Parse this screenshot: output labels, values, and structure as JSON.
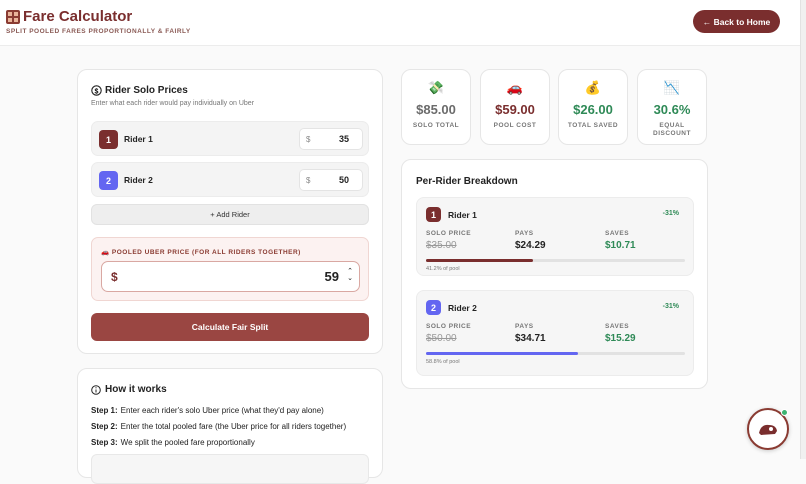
{
  "header": {
    "title": "Fare Calculator",
    "subtitle": "SPLIT POOLED FARES PROPORTIONALLY & FAIRLY",
    "back_button": "← Back to Home"
  },
  "solo_prices": {
    "title": "Rider Solo Prices",
    "description": "Enter what each rider would pay individually on Uber",
    "currency": "$",
    "riders": [
      {
        "number": 1,
        "name": "Rider 1",
        "price": 35
      },
      {
        "number": 2,
        "name": "Rider 2",
        "price": 50
      }
    ],
    "add_button": "+ Add Rider",
    "pool_label": "🚗 POOLED UBER PRICE (FOR ALL RIDERS TOGETHER)",
    "pool_currency": "$",
    "pool_price": 59,
    "calculate_button": "Calculate Fair Split"
  },
  "stats": [
    {
      "icon": "💸",
      "value": "$85.00",
      "label": "SOLO TOTAL"
    },
    {
      "icon": "🚗",
      "value": "$59.00",
      "label": "POOL COST"
    },
    {
      "icon": "💰",
      "value": "$26.00",
      "label": "TOTAL SAVED"
    },
    {
      "icon": "📉",
      "value": "30.6%",
      "label": "EQUAL DISCOUNT"
    }
  ],
  "breakdown": {
    "title": "Per-Rider Breakdown",
    "riders": [
      {
        "number": 1,
        "name": "Rider 1",
        "discount": "-31%",
        "solo_label": "SOLO PRICE",
        "solo_price": "$35.00",
        "pays_label": "PAYS",
        "pays": "$24.29",
        "saves_label": "SAVES",
        "saves": "$10.71",
        "pool_share": {
          "value": 41.2,
          "label": "41.2% of pool"
        }
      },
      {
        "number": 2,
        "name": "Rider 2",
        "discount": "-31%",
        "solo_label": "SOLO PRICE",
        "solo_price": "$50.00",
        "pays_label": "PAYS",
        "pays": "$34.71",
        "saves_label": "SAVES",
        "saves": "$15.29",
        "pool_share": {
          "value": 58.8,
          "label": "58.8% of pool"
        }
      }
    ]
  },
  "how_it_works": {
    "title": "How it works",
    "steps": [
      {
        "label": "Step 1:",
        "text": "Enter each rider's solo Uber price (what they'd pay alone)"
      },
      {
        "label": "Step 2:",
        "text": "Enter the total pooled fare (the Uber price for all riders together)"
      },
      {
        "label": "Step 3:",
        "text": "We split the pooled fare proportionally"
      }
    ]
  }
}
